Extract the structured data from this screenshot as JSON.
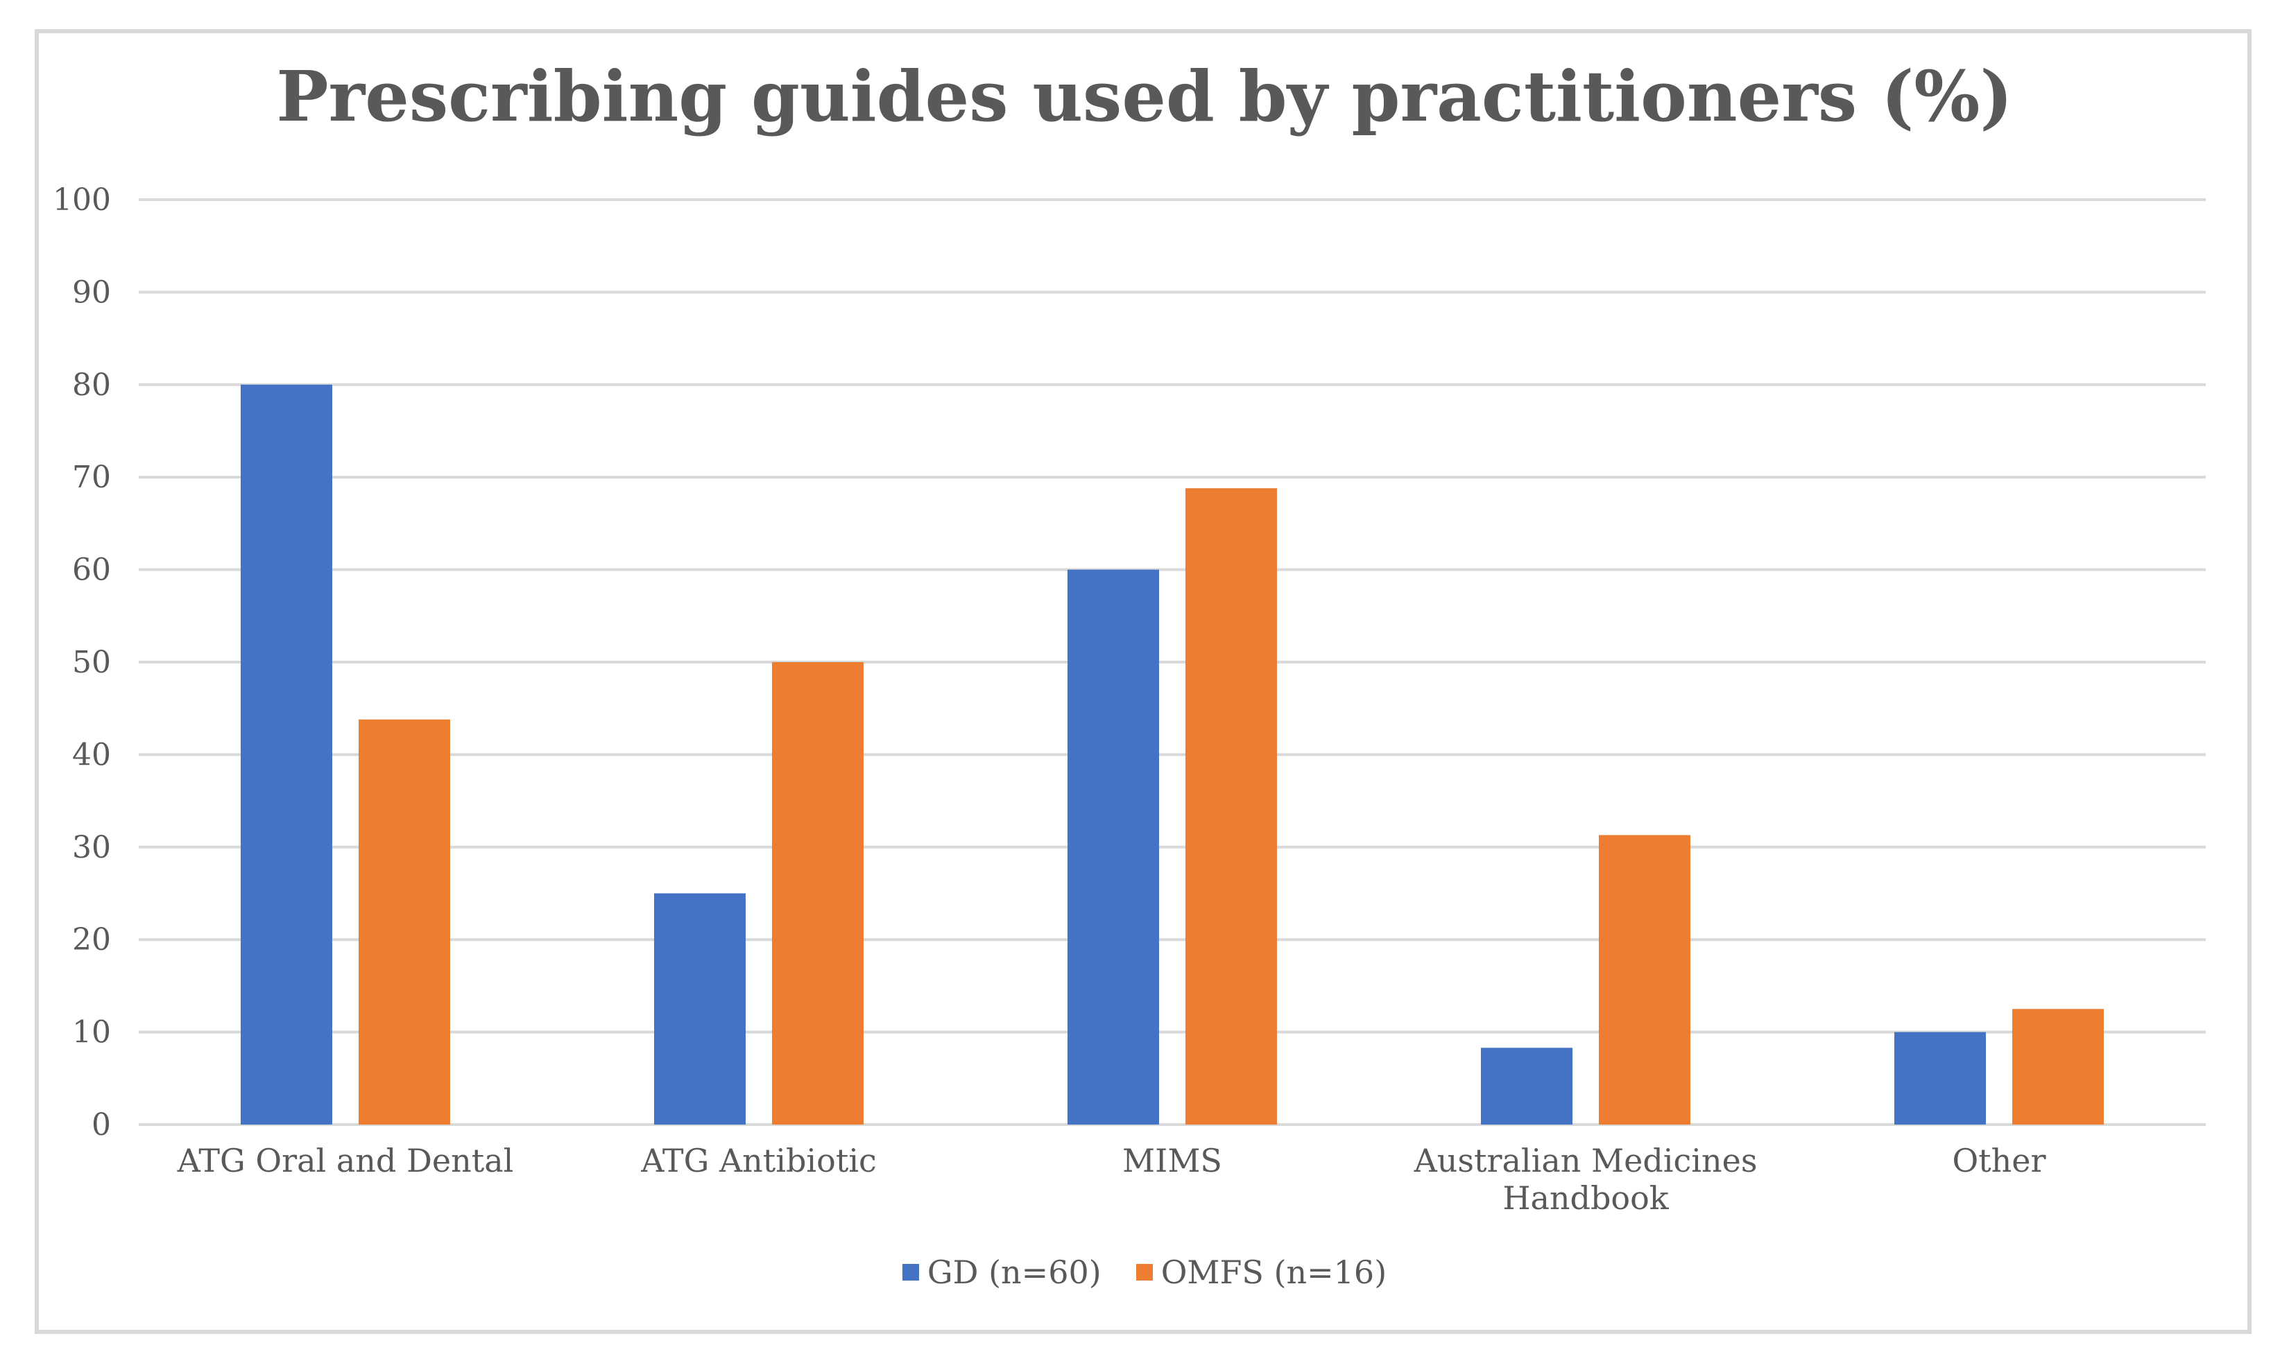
{
  "chart_data": {
    "type": "bar",
    "title": "Prescribing guides used by practitioners (%)",
    "xlabel": "",
    "ylabel": "",
    "ylim": [
      0,
      100
    ],
    "yticks": [
      "0",
      "10",
      "20",
      "30",
      "40",
      "50",
      "60",
      "70",
      "80",
      "90",
      "100"
    ],
    "categories": [
      [
        "ATG Oral and Dental"
      ],
      [
        "ATG Antibiotic"
      ],
      [
        "MIMS"
      ],
      [
        "Australian Medicines",
        "Handbook"
      ],
      [
        "Other"
      ]
    ],
    "series": [
      {
        "name": "GD (n=60)",
        "color": "#4472c4",
        "values": [
          80,
          25,
          60,
          8.3,
          10
        ]
      },
      {
        "name": "OMFS (n=16)",
        "color": "#ed7d31",
        "values": [
          43.8,
          50,
          68.8,
          31.3,
          12.5
        ]
      }
    ],
    "grid": true,
    "legend_position": "bottom"
  }
}
